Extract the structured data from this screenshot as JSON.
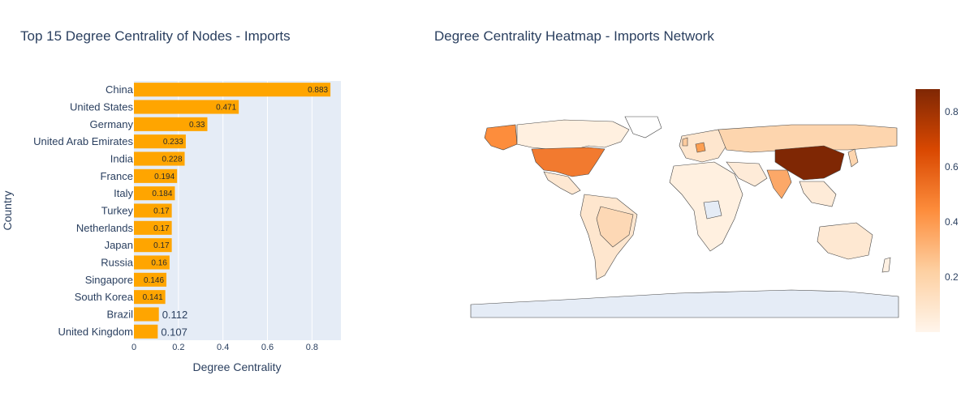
{
  "chart_data": [
    {
      "type": "bar",
      "orientation": "horizontal",
      "title": "Top 15 Degree Centrality of Nodes - Imports",
      "xlabel": "Degree Centrality",
      "ylabel": "Country",
      "xlim": [
        0,
        0.93
      ],
      "xticks": [
        0,
        0.2,
        0.4,
        0.6,
        0.8
      ],
      "xtick_labels": [
        "0",
        "0.2",
        "0.4",
        "0.6",
        "0.8"
      ],
      "grid": true,
      "bar_color": "#FFA500",
      "background_color": "#E5ECF6",
      "categories": [
        "China",
        "United States",
        "Germany",
        "United Arab Emirates",
        "India",
        "France",
        "Italy",
        "Turkey",
        "Netherlands",
        "Japan",
        "Russia",
        "Singapore",
        "South Korea",
        "Brazil",
        "United Kingdom"
      ],
      "values": [
        0.883,
        0.471,
        0.33,
        0.233,
        0.228,
        0.194,
        0.184,
        0.17,
        0.17,
        0.17,
        0.16,
        0.146,
        0.141,
        0.112,
        0.107
      ],
      "value_labels": [
        "0.883",
        "0.471",
        "0.33",
        "0.233",
        "0.228",
        "0.194",
        "0.184",
        "0.17",
        "0.17",
        "0.17",
        "0.16",
        "0.146",
        "0.141",
        "0.112",
        "0.107"
      ]
    },
    {
      "type": "heatmap",
      "subtype": "choropleth",
      "title": "Degree Centrality Heatmap - Imports Network",
      "colorscale": "Oranges",
      "colorbar_range": [
        0,
        0.883
      ],
      "colorbar_ticks": [
        0.2,
        0.4,
        0.6,
        0.8
      ],
      "colorbar_tick_labels": [
        "0.2",
        "0.4",
        "0.6",
        "0.8"
      ],
      "colorbar_colors": [
        "#FFF5EB",
        "#FDD0A2",
        "#FD8D3C",
        "#D94801",
        "#7F2704"
      ]
    }
  ]
}
